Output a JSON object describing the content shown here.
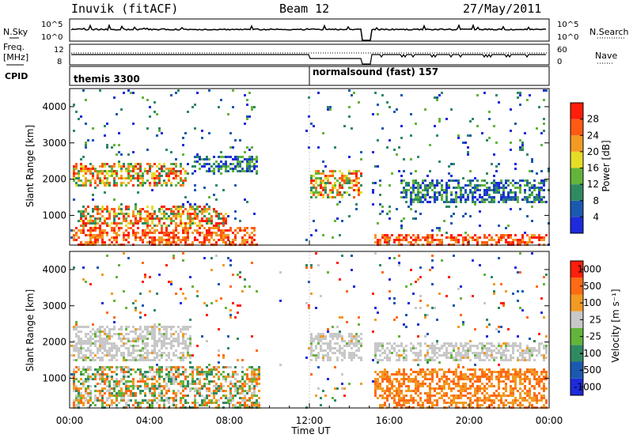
{
  "header": {
    "station": "Inuvik (fitACF)",
    "beam": "Beam 12",
    "date": "27/May/2011"
  },
  "left_labels": {
    "nsky": "N.Sky",
    "freq": "Freq.",
    "freq_unit": "[MHz]",
    "cpid": "CPID"
  },
  "right_labels": {
    "nsearch": "N.Search",
    "nave": "Nave"
  },
  "cpid_labels": {
    "first": "themis 3300",
    "second": "normalsound (fast) 157"
  },
  "noise_axis_ticks": [
    "10^5",
    "10^0"
  ],
  "freq_axis_ticks": [
    "12",
    "8"
  ],
  "nave_axis_ticks": [
    "60",
    "0"
  ],
  "colors": {
    "frame": "#000000",
    "grid": "#aaaaaa",
    "gray_scatter": "#c8c8c8"
  },
  "chart_data": [
    {
      "type": "heatmap",
      "name": "power",
      "ylabel": "Slant Range [km]",
      "xlabel": "",
      "y_ticks": [
        1000,
        2000,
        3000,
        4000
      ],
      "ylim": [
        180,
        4500
      ],
      "colorbar": {
        "label": "Power [dB]",
        "ticks": [
          "4",
          "8",
          "12",
          "16",
          "20",
          "24",
          "28"
        ],
        "colors": [
          "#1e2adc",
          "#1b58b0",
          "#2f8a62",
          "#63b43a",
          "#e6dc28",
          "#f29a23",
          "#ff5a14",
          "#ff1e0a"
        ]
      },
      "data_gap_hours": [
        14.6,
        15.1
      ],
      "bands": [
        {
          "start": 0.1,
          "end": 5.8,
          "range": [
            1850,
            2500
          ],
          "level": "mid"
        },
        {
          "start": 0.3,
          "end": 7.8,
          "range": [
            700,
            1300
          ],
          "level": "mid"
        },
        {
          "start": 0.1,
          "end": 9.4,
          "range": [
            180,
            700
          ],
          "level": "high"
        },
        {
          "start": 6.2,
          "end": 9.4,
          "range": [
            2200,
            2700
          ],
          "level": "low"
        },
        {
          "start": 12.0,
          "end": 14.6,
          "range": [
            1500,
            2300
          ],
          "level": "mid"
        },
        {
          "start": 15.2,
          "end": 23.9,
          "range": [
            180,
            500
          ],
          "level": "high"
        },
        {
          "start": 16.5,
          "end": 23.9,
          "range": [
            1400,
            2000
          ],
          "level": "low"
        }
      ]
    },
    {
      "type": "heatmap",
      "name": "velocity",
      "ylabel": "Slant Range [km]",
      "xlabel": "Time UT",
      "y_ticks": [
        1000,
        2000,
        3000,
        4000
      ],
      "ylim": [
        180,
        4500
      ],
      "colorbar": {
        "label": "Velocity [m s⁻¹]",
        "ticks": [
          "1000",
          "500",
          "100",
          "25",
          "-25",
          "-100",
          "-500",
          "-1000"
        ],
        "colors": [
          "#1e2adc",
          "#1b58b0",
          "#2f8a62",
          "#63b43a",
          "#c8c8c8",
          "#f29a23",
          "#ff6a14",
          "#ff1e0a"
        ]
      },
      "data_gap_hours": [
        14.6,
        15.1
      ],
      "bands": [
        {
          "start": 0.1,
          "end": 6.0,
          "range": [
            1500,
            2500
          ],
          "level": "zero"
        },
        {
          "start": 0.1,
          "end": 9.5,
          "range": [
            180,
            1400
          ],
          "level": "mix"
        },
        {
          "start": 12.0,
          "end": 14.6,
          "range": [
            1500,
            2300
          ],
          "level": "zero"
        },
        {
          "start": 15.2,
          "end": 23.9,
          "range": [
            180,
            1300
          ],
          "level": "away"
        },
        {
          "start": 15.2,
          "end": 23.9,
          "range": [
            1500,
            2000
          ],
          "level": "zero"
        }
      ]
    }
  ],
  "time_axis": {
    "labels": [
      "00:00",
      "04:00",
      "08:00",
      "12:00",
      "16:00",
      "20:00",
      "00:00"
    ],
    "hours": [
      0,
      4,
      8,
      12,
      16,
      20,
      24
    ]
  }
}
